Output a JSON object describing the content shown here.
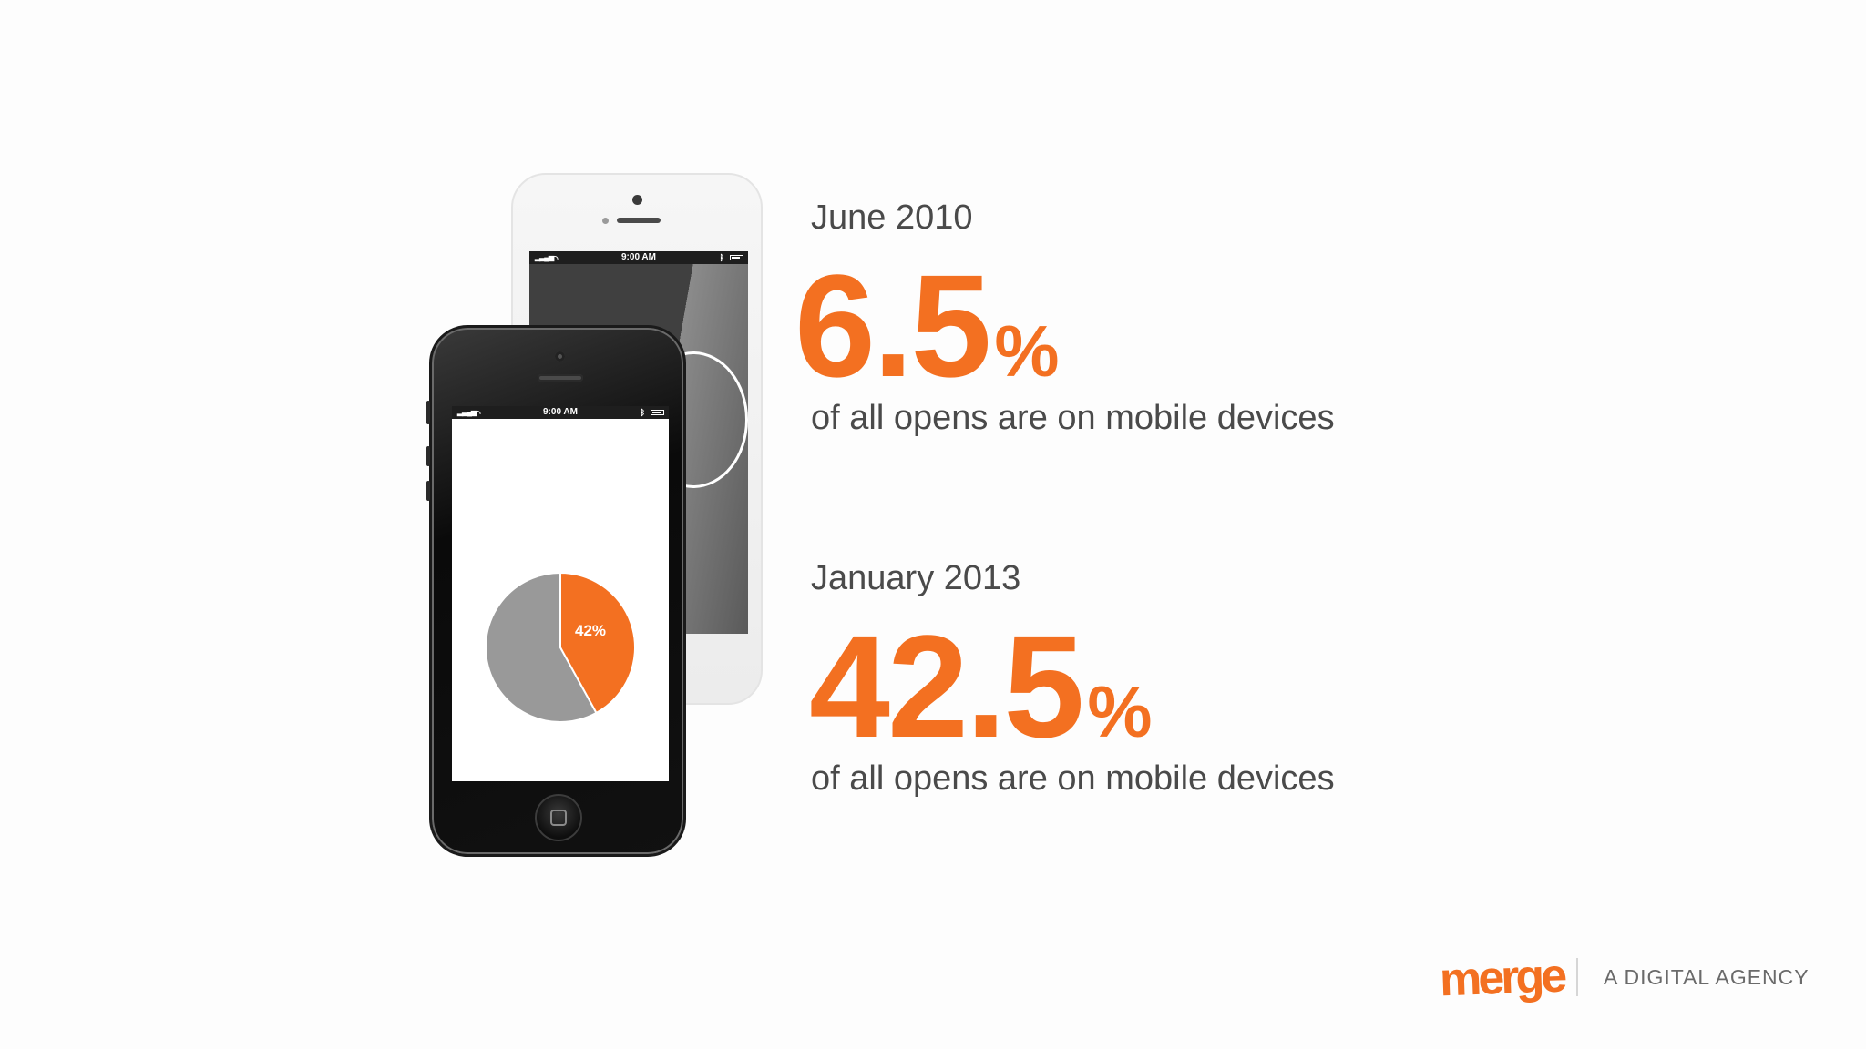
{
  "colors": {
    "accent": "#f37021",
    "text": "#4a4a4a",
    "pie_rest": "#999999"
  },
  "phones": {
    "status_time": "9:00 AM",
    "pie": {
      "label": "42%",
      "value_percent": 42
    }
  },
  "stats": [
    {
      "date": "June 2010",
      "value": "6.5",
      "unit": "%",
      "caption": "of all opens are on mobile devices"
    },
    {
      "date": "January 2013",
      "value": "42.5",
      "unit": "%",
      "caption": "of all opens are on mobile devices"
    }
  ],
  "footer": {
    "logo_text": "merge",
    "tagline": "A DIGITAL AGENCY"
  }
}
